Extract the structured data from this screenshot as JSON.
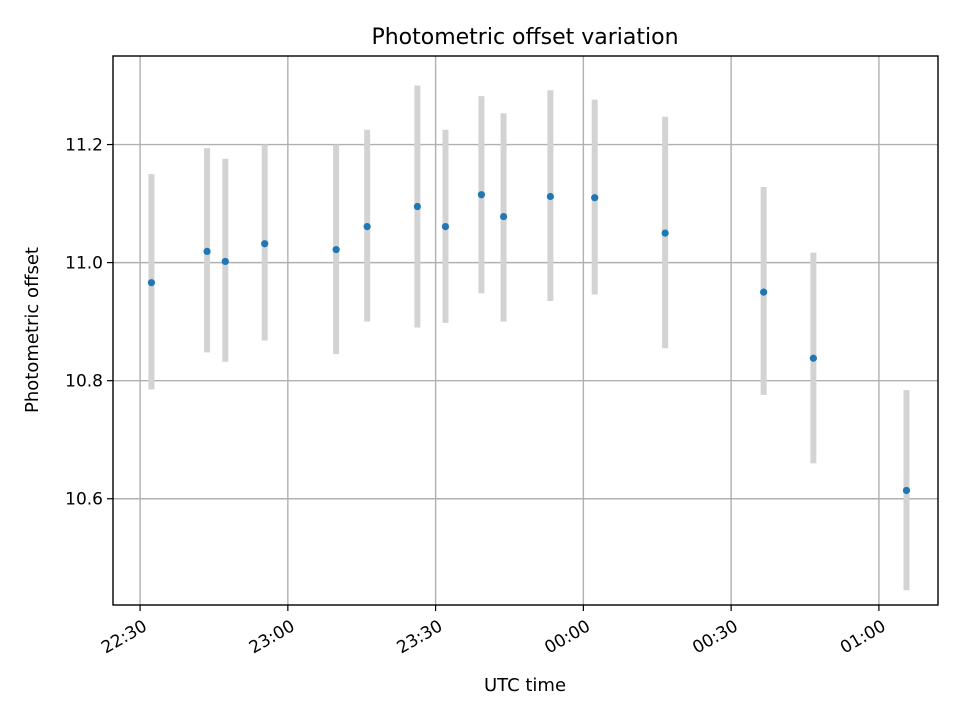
{
  "chart_data": {
    "type": "scatter",
    "title": "Photometric offset variation",
    "xlabel": "UTC time",
    "ylabel": "Photometric offset",
    "x_tick_labels": [
      "22:30",
      "23:00",
      "23:30",
      "00:00",
      "00:30",
      "01:00"
    ],
    "x_ticks_minutes": [
      0,
      30,
      60,
      90,
      120,
      150
    ],
    "xlim_minutes": [
      -5.5,
      162
    ],
    "y_ticks": [
      10.6,
      10.8,
      11.0,
      11.2
    ],
    "y_tick_labels": [
      "10.6",
      "10.8",
      "11.0",
      "11.2"
    ],
    "ylim": [
      10.42,
      11.35
    ],
    "grid": true,
    "colors": {
      "point": "#1f77b4",
      "errorbar": "#d3d3d3"
    },
    "series": [
      {
        "x_minutes": [
          2.3,
          13.6,
          17.3,
          25.3,
          39.8,
          46.1,
          56.3,
          62.0,
          69.3,
          73.8,
          83.3,
          92.3,
          106.6,
          126.6,
          136.7,
          155.6
        ],
        "x_times": [
          "22:32",
          "22:44",
          "22:47",
          "22:55",
          "23:10",
          "23:16",
          "23:26",
          "23:32",
          "23:39",
          "23:44",
          "23:53",
          "00:02",
          "00:17",
          "00:37",
          "00:47",
          "01:06"
        ],
        "y": [
          10.966,
          11.019,
          11.002,
          11.032,
          11.022,
          11.061,
          11.095,
          11.061,
          11.115,
          11.078,
          11.112,
          11.11,
          11.05,
          10.95,
          10.838,
          10.614
        ],
        "y_err_low": [
          10.785,
          10.848,
          10.832,
          10.868,
          10.845,
          10.9,
          10.89,
          10.898,
          10.948,
          10.9,
          10.935,
          10.946,
          10.855,
          10.776,
          10.66,
          10.445
        ],
        "y_err_high": [
          11.15,
          11.194,
          11.176,
          11.2,
          11.2,
          11.225,
          11.3,
          11.225,
          11.282,
          11.253,
          11.292,
          11.276,
          11.247,
          11.128,
          11.017,
          10.784
        ]
      }
    ]
  }
}
